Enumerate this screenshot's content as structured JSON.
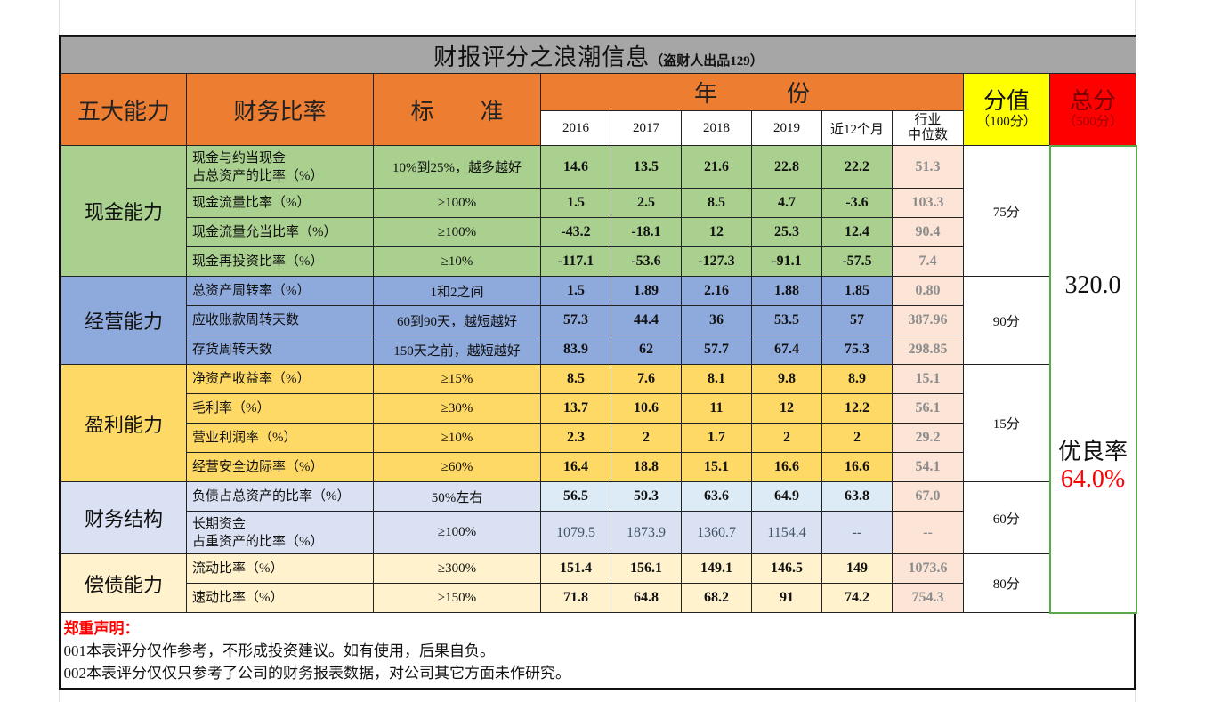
{
  "title": "财报评分之浪潮信息",
  "subtitle": "（盗财人出品129）",
  "header": {
    "ability": "五大能力",
    "ratio": "财务比率",
    "standard": "标　　准",
    "years_label": "年　　　份",
    "years": [
      "2016",
      "2017",
      "2018",
      "2019",
      "近12个月"
    ],
    "median_label": [
      "行业",
      "中位数"
    ],
    "score_label": "分值",
    "score_sub": "（100分）",
    "total_label": "总分",
    "total_sub": "（500分）"
  },
  "colors": {
    "cash": "#a9d08e",
    "operation": "#8ea9db",
    "profit": "#ffd966",
    "structure": "#d9e1f2",
    "solvency": "#fff2cc",
    "header": "#ed7d31",
    "title": "#a6a6a6",
    "median": "#fce4d6"
  },
  "sections": [
    {
      "name": "现金能力",
      "score": "75分",
      "color": "#a9d08e",
      "rows": [
        {
          "ratio": [
            "现金与约当现金",
            "占总资产的比率（%）"
          ],
          "standard": "10%到25%，越多越好",
          "values": [
            "14.6",
            "13.5",
            "21.6",
            "22.8",
            "22.2"
          ],
          "median": "51.3"
        },
        {
          "ratio": [
            "现金流量比率（%）"
          ],
          "standard": "≥100%",
          "values": [
            "1.5",
            "2.5",
            "8.5",
            "4.7",
            "-3.6"
          ],
          "median": "103.3"
        },
        {
          "ratio": [
            "现金流量允当比率（%）"
          ],
          "standard": "≥100%",
          "values": [
            "-43.2",
            "-18.1",
            "12",
            "25.3",
            "12.4"
          ],
          "median": "90.4"
        },
        {
          "ratio": [
            "现金再投资比率（%）"
          ],
          "standard": "≥10%",
          "values": [
            "-117.1",
            "-53.6",
            "-127.3",
            "-91.1",
            "-57.5"
          ],
          "median": "7.4"
        }
      ]
    },
    {
      "name": "经营能力",
      "score": "90分",
      "color": "#8ea9db",
      "rows": [
        {
          "ratio": [
            "总资产周转率（%）"
          ],
          "standard": "1和2之间",
          "values": [
            "1.5",
            "1.89",
            "2.16",
            "1.88",
            "1.85"
          ],
          "median": "0.80"
        },
        {
          "ratio": [
            "应收账款周转天数"
          ],
          "standard": "60到90天，越短越好",
          "values": [
            "57.3",
            "44.4",
            "36",
            "53.5",
            "57"
          ],
          "median": "387.96"
        },
        {
          "ratio": [
            "存货周转天数"
          ],
          "standard": "150天之前，越短越好",
          "values": [
            "83.9",
            "62",
            "57.7",
            "67.4",
            "75.3"
          ],
          "median": "298.85"
        }
      ]
    },
    {
      "name": "盈利能力",
      "score": "15分",
      "color": "#ffd966",
      "rows": [
        {
          "ratio": [
            "净资产收益率（%）"
          ],
          "standard": "≥15%",
          "values": [
            "8.5",
            "7.6",
            "8.1",
            "9.8",
            "8.9"
          ],
          "median": "15.1"
        },
        {
          "ratio": [
            "毛利率（%）"
          ],
          "standard": "≥30%",
          "values": [
            "13.7",
            "10.6",
            "11",
            "12",
            "12.2"
          ],
          "median": "56.1"
        },
        {
          "ratio": [
            "营业利润率（%）"
          ],
          "standard": "≥10%",
          "values": [
            "2.3",
            "2",
            "1.7",
            "2",
            "2"
          ],
          "median": "29.2"
        },
        {
          "ratio": [
            "经营安全边际率（%）"
          ],
          "standard": "≥60%",
          "values": [
            "16.4",
            "18.8",
            "15.1",
            "16.6",
            "16.6"
          ],
          "median": "54.1"
        }
      ]
    },
    {
      "name": "财务结构",
      "score": "60分",
      "color": "#d9e1f2",
      "rows": [
        {
          "ratio": [
            "负债占总资产的比率（%）"
          ],
          "standard": "50%左右",
          "values": [
            "56.5",
            "59.3",
            "63.6",
            "64.9",
            "63.8"
          ],
          "median": "67.0",
          "value_color": "#ddebf7"
        },
        {
          "ratio": [
            "长期资金",
            "占重资产的比率（%）"
          ],
          "standard": "≥100%",
          "values": [
            "1079.5",
            "1873.9",
            "1360.7",
            "1154.4",
            "--"
          ],
          "median": "--",
          "text_color": "#44546a"
        }
      ]
    },
    {
      "name": "偿债能力",
      "score": "80分",
      "color": "#fff2cc",
      "rows": [
        {
          "ratio": [
            "流动比率（%）"
          ],
          "standard": "≥300%",
          "values": [
            "151.4",
            "156.1",
            "149.1",
            "146.5",
            "149"
          ],
          "median": "1073.6"
        },
        {
          "ratio": [
            "速动比率（%）"
          ],
          "standard": "≥150%",
          "values": [
            "71.8",
            "64.8",
            "68.2",
            "91",
            "74.2"
          ],
          "median": "754.3"
        }
      ]
    }
  ],
  "total": {
    "score": "320.0",
    "rate_label": "优良率",
    "rate": "64.0%"
  },
  "disclaimer": {
    "title": "郑重声明：",
    "lines": [
      "001本表评分仅作参考，不形成投资建议。如有使用，后果自负。",
      "002本表评分仅仅只参考了公司的财务报表数据，对公司其它方面未作研究。"
    ]
  }
}
